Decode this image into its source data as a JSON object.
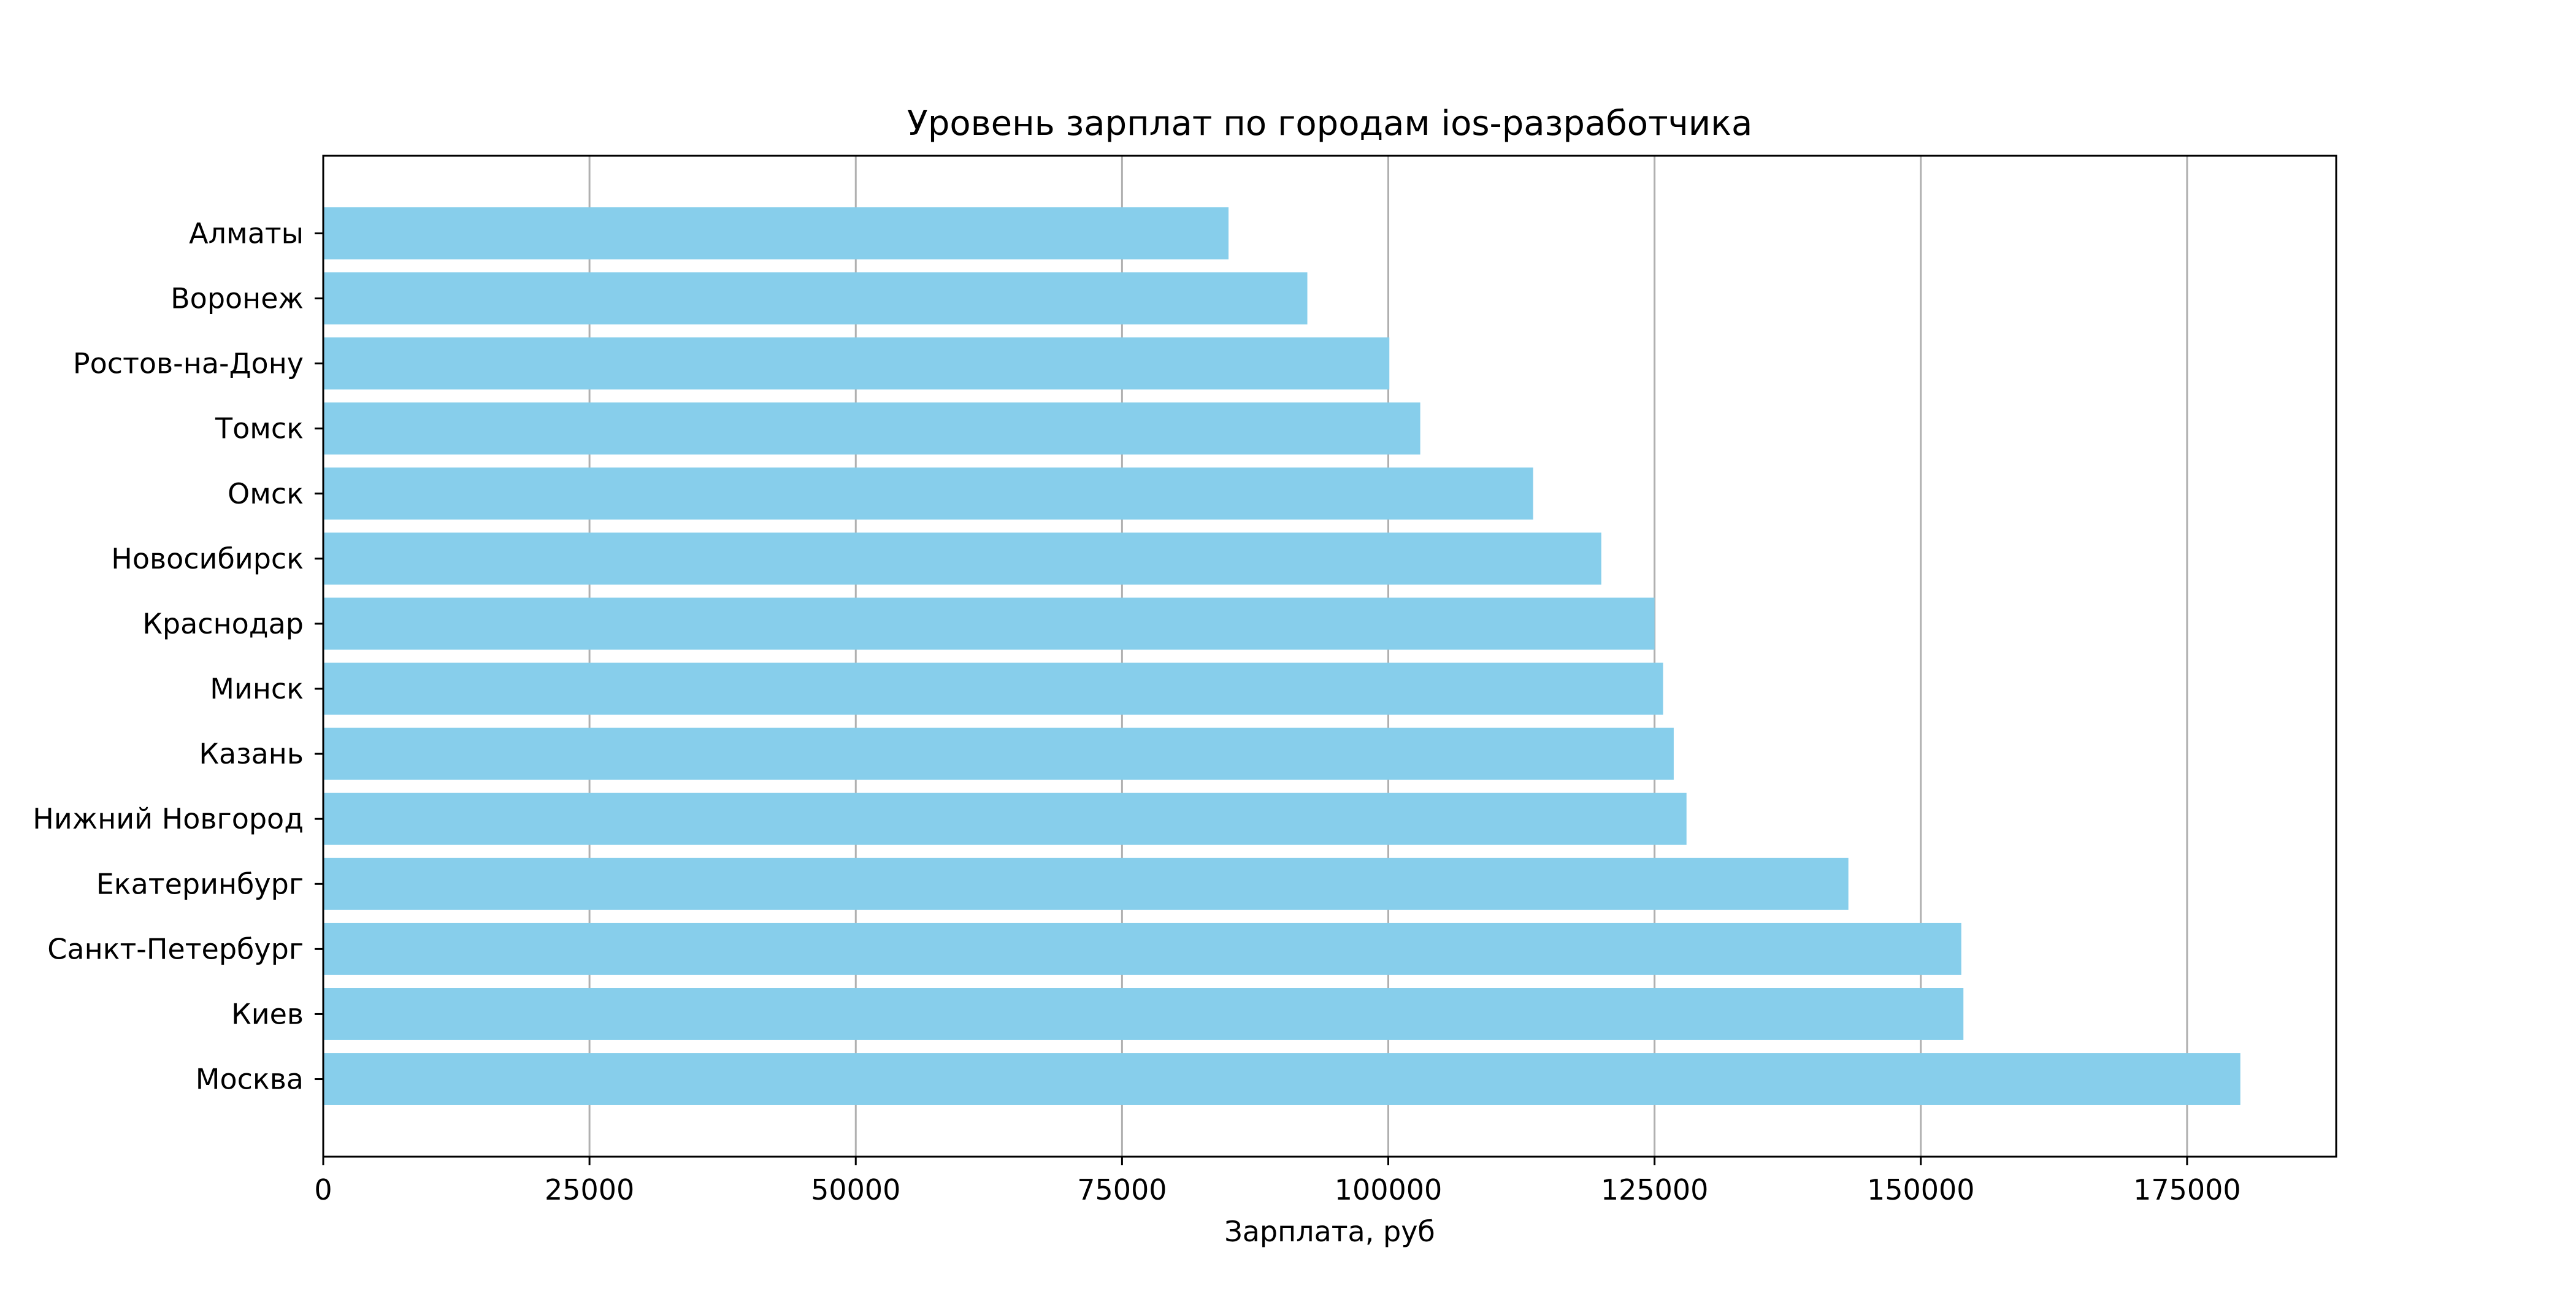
{
  "chart_data": {
    "type": "bar",
    "orientation": "horizontal",
    "title": "Уровень зарплат по городам ios-разработчика",
    "xlabel": "Зарплата, руб",
    "ylabel": "",
    "xlim": [
      0,
      189000
    ],
    "xticks": [
      0,
      25000,
      50000,
      75000,
      100000,
      125000,
      150000,
      175000
    ],
    "xtick_labels": [
      "0",
      "25000",
      "50000",
      "75000",
      "100000",
      "125000",
      "150000",
      "175000"
    ],
    "grid": "vertical",
    "legend": "none",
    "bar_color": "#87CEEB",
    "categories": [
      "Москва",
      "Киев",
      "Санкт-Петербург",
      "Екатеринбург",
      "Нижний Новгород",
      "Казань",
      "Минск",
      "Краснодар",
      "Новосибирск",
      "Омск",
      "Томск",
      "Ростов-на-Дону",
      "Воронеж",
      "Алматы"
    ],
    "values": [
      180000,
      154000,
      153800,
      143200,
      128000,
      126800,
      125800,
      125000,
      120000,
      113600,
      103000,
      100100,
      92400,
      85000
    ]
  }
}
